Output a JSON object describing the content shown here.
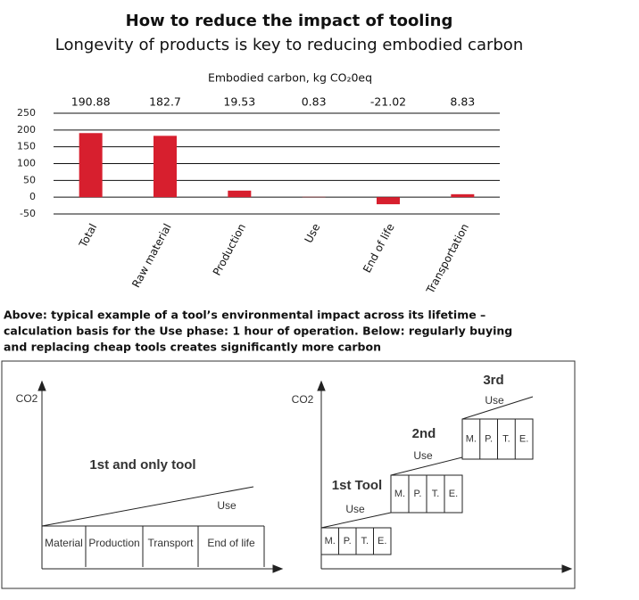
{
  "chart_data": {
    "type": "bar",
    "title": "How to reduce the impact of tooling",
    "subtitle": "Longevity of products is key to reducing embodied carbon",
    "y_axis_label": "Embodied carbon, kg CO₂0eq",
    "categories": [
      "Total",
      "Raw material",
      "Production",
      "Use",
      "End of life",
      "Transportation"
    ],
    "values": [
      190.88,
      182.7,
      19.53,
      0.83,
      -21.02,
      8.83
    ],
    "color": "#d71f2e",
    "ylim": [
      -50,
      250
    ],
    "yticks": [
      250,
      200,
      150,
      100,
      50,
      0,
      -50
    ],
    "grid": true
  },
  "caption": [
    "Above: typical example of a tool’s environmental impact across its lifetime –",
    "calculation basis for the Use phase: 1 hour of operation. Below: regularly buying",
    "and replacing cheap tools creates significantly more carbon"
  ],
  "diagrams": {
    "left": {
      "y_label": "CO2",
      "title": "1st and only tool",
      "use": "Use",
      "stages": [
        "Material",
        "Production",
        "Transport",
        "End of life"
      ]
    },
    "right": {
      "y_label": "CO2",
      "tools": [
        {
          "label": "1st Tool",
          "use": "Use",
          "stages": [
            "M.",
            "P.",
            "T.",
            "E."
          ]
        },
        {
          "label": "2nd",
          "use": "Use",
          "stages": [
            "M.",
            "P.",
            "T.",
            "E."
          ]
        },
        {
          "label": "3rd",
          "use": "Use",
          "stages": [
            "M.",
            "P.",
            "T.",
            "E."
          ]
        }
      ]
    }
  }
}
